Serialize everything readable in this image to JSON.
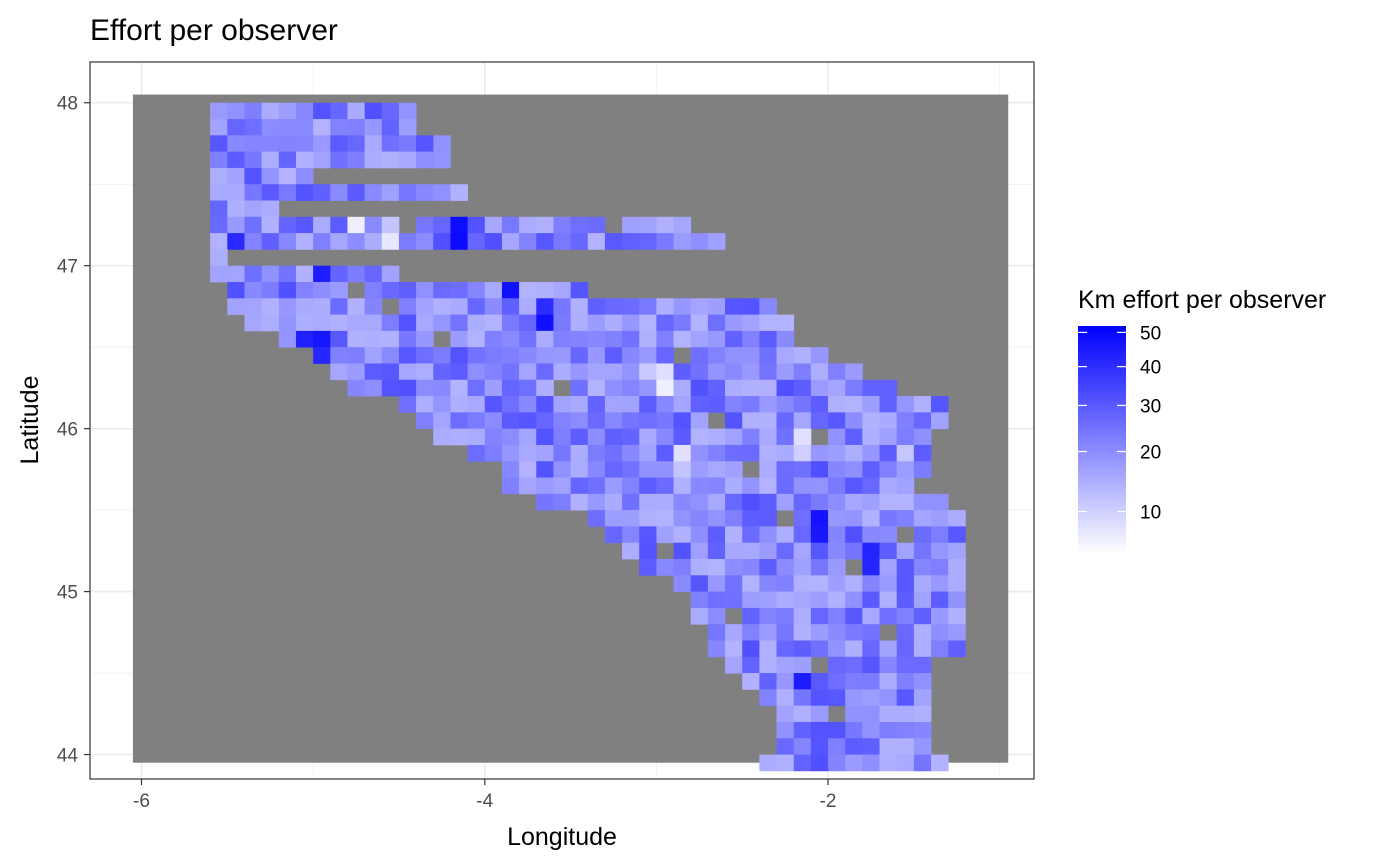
{
  "chart_data": {
    "type": "heatmap",
    "title": "Effort per observer",
    "xlabel": "Longitude",
    "ylabel": "Latitude",
    "xlim": [
      -6.3,
      -0.8
    ],
    "ylim": [
      43.85,
      48.25
    ],
    "x_ticks": [
      -6,
      -4,
      -2
    ],
    "x_tick_labels": [
      "-6",
      "-4",
      "-2"
    ],
    "y_ticks": [
      44,
      45,
      46,
      47,
      48
    ],
    "y_tick_labels": [
      "44",
      "45",
      "46",
      "47",
      "48"
    ],
    "grid": true,
    "background_color": "#808080",
    "raster_extent": {
      "x_min": -6.05,
      "x_max": -0.95,
      "y_min": 43.95,
      "y_max": 48.05
    },
    "cell_size": 0.1,
    "legend": {
      "title": "Km effort per observer",
      "placement": "right",
      "min": 5,
      "max": 52,
      "ticks": [
        10,
        20,
        30,
        40,
        50
      ],
      "tick_labels": [
        "10",
        "20",
        "30",
        "40",
        "50"
      ],
      "color_low": "#ffffff",
      "color_high": "#0000ff"
    },
    "region_outline": {
      "north_edge": [
        [
          -5.55,
          47.1
        ],
        [
          -5.2,
          47.4
        ],
        [
          -5.0,
          47.6
        ],
        [
          -4.8,
          47.78
        ],
        [
          -4.65,
          48.0
        ],
        [
          -4.4,
          48.0
        ],
        [
          -4.25,
          47.8
        ],
        [
          -4.1,
          47.5
        ],
        [
          -3.8,
          47.55
        ],
        [
          -3.4,
          47.6
        ],
        [
          -3.0,
          47.55
        ],
        [
          -2.8,
          47.3
        ],
        [
          -2.6,
          47.2
        ],
        [
          -2.45,
          47.1
        ],
        [
          -2.35,
          46.8
        ],
        [
          -2.25,
          46.6
        ],
        [
          -2.0,
          46.6
        ],
        [
          -1.8,
          46.4
        ],
        [
          -1.6,
          46.3
        ],
        [
          -1.3,
          46.2
        ],
        [
          -1.35,
          46.0
        ],
        [
          -1.4,
          45.7
        ],
        [
          -1.2,
          45.5
        ],
        [
          -1.2,
          45.1
        ],
        [
          -1.2,
          44.7
        ],
        [
          -1.4,
          44.6
        ],
        [
          -1.45,
          44.3
        ],
        [
          -1.3,
          44.0
        ]
      ],
      "south_edge": [
        [
          -5.55,
          47.0
        ],
        [
          -5.45,
          46.75
        ],
        [
          -5.2,
          46.6
        ],
        [
          -4.95,
          46.5
        ],
        [
          -4.8,
          46.3
        ],
        [
          -4.45,
          46.2
        ],
        [
          -4.35,
          46.05
        ],
        [
          -4.05,
          45.9
        ],
        [
          -3.8,
          45.65
        ],
        [
          -3.5,
          45.55
        ],
        [
          -3.2,
          45.3
        ],
        [
          -2.9,
          45.1
        ],
        [
          -2.8,
          44.9
        ],
        [
          -2.6,
          44.6
        ],
        [
          -2.45,
          44.45
        ],
        [
          -2.3,
          44.3
        ],
        [
          -2.35,
          44.0
        ]
      ],
      "gap_cells": [
        [
          -4.85,
          47.35
        ],
        [
          -4.45,
          47.25
        ],
        [
          -4.55,
          46.75
        ],
        [
          -4.25,
          46.55
        ],
        [
          -3.95,
          46.95
        ],
        [
          -3.75,
          47.45
        ],
        [
          -3.55,
          46.25
        ],
        [
          -3.35,
          46.85
        ],
        [
          -3.05,
          47.05
        ],
        [
          -2.85,
          46.45
        ],
        [
          -2.65,
          46.05
        ],
        [
          -2.45,
          45.75
        ],
        [
          -2.25,
          45.45
        ],
        [
          -2.05,
          45.95
        ],
        [
          -1.85,
          45.15
        ],
        [
          -1.65,
          44.75
        ],
        [
          -1.45,
          45.65
        ],
        [
          -1.75,
          46.55
        ],
        [
          -2.95,
          45.25
        ],
        [
          -2.55,
          44.85
        ],
        [
          -2.05,
          44.55
        ],
        [
          -1.95,
          44.25
        ],
        [
          -4.65,
          47.55
        ],
        [
          -3.25,
          47.3
        ],
        [
          -5.05,
          47.05
        ],
        [
          -4.75,
          46.85
        ],
        [
          -2.35,
          46.95
        ],
        [
          -1.55,
          45.35
        ]
      ],
      "bright_cells": [
        [
          -5.05,
          46.55
        ],
        [
          -5.05,
          46.45
        ],
        [
          -4.95,
          46.55
        ],
        [
          -4.95,
          46.45
        ],
        [
          -2.05,
          45.4
        ],
        [
          -4.15,
          47.2
        ],
        [
          -3.95,
          47.0
        ],
        [
          -3.85,
          46.9
        ],
        [
          -5.45,
          47.15
        ],
        [
          -4.95,
          46.95
        ],
        [
          -3.65,
          46.7
        ],
        [
          -1.75,
          45.2
        ],
        [
          -2.15,
          44.45
        ],
        [
          -2.45,
          47.0
        ]
      ],
      "pale_cells": [
        [
          -4.75,
          47.3
        ],
        [
          -4.55,
          47.2
        ],
        [
          -3.05,
          46.35
        ],
        [
          -2.95,
          46.3
        ],
        [
          -2.25,
          46.75
        ],
        [
          -1.25,
          46.2
        ],
        [
          -1.75,
          46.5
        ],
        [
          -5.65,
          47.3
        ],
        [
          -3.0,
          47.55
        ],
        [
          -1.55,
          45.85
        ],
        [
          -1.35,
          44.1
        ],
        [
          -2.85,
          45.8
        ],
        [
          -2.15,
          45.9
        ]
      ]
    }
  }
}
